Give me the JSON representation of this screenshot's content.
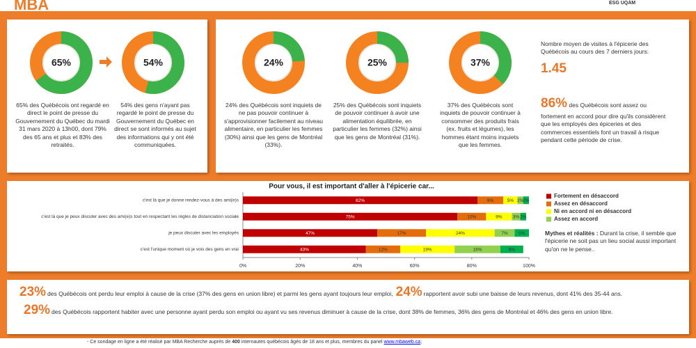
{
  "header": {
    "logo": "MBA",
    "partner": "ESG UQÀM"
  },
  "chart_data": [
    {
      "type": "donut",
      "value": 65,
      "label": "65%",
      "color": "#3cb34a",
      "rest_color": "#f58220",
      "caption": "65% des Québécois ont regardé en direct le point de presse du Gouvernement du Québec du mardi 31 mars 2020 à 13h00, dont 79% des 65 ans et plus et 83% des retraités."
    },
    {
      "type": "donut",
      "value": 54,
      "label": "54%",
      "color": "#3cb34a",
      "rest_color": "#f58220",
      "caption": "54% des gens n'ayant pas regardé le point de presse du Gouvernement du Québec en direct se sont informés au sujet des informations qui y ont été communiquées."
    },
    {
      "type": "donut",
      "value": 24,
      "label": "24%",
      "color": "#3cb34a",
      "rest_color": "#f58220",
      "caption": "24% des Québécois sont inquiets de ne pas pouvoir continuer à s'approvisionner facilement au niveau alimentaire, en particulier les femmes (30%) ainsi que les gens de Montréal (33%)."
    },
    {
      "type": "donut",
      "value": 25,
      "label": "25%",
      "color": "#3cb34a",
      "rest_color": "#f58220",
      "caption": "25% des Québécois sont inquiets de pouvoir continuer à avoir une alimentation équilibrée, en particulier les femmes (32%) ainsi que les gens de Montréal (31%)."
    },
    {
      "type": "donut",
      "value": 37,
      "label": "37%",
      "color": "#3cb34a",
      "rest_color": "#f58220",
      "caption": "37% des Québécois sont inquiets de pouvoir continuer à consommer des produits frais (ex. fruits et légumes), les hommes étant moins inquiets que les femmes."
    },
    {
      "type": "stacked_barh",
      "title": "Pour vous, il est important d'aller à l'épicerie car...",
      "categories": [
        "c'est là que je donne rendez-vous à des ami(e)s",
        "c'est là que je peux discuter avec des ami(e)s tout en respectant les règles de distanciation sociale",
        "je peux discuter avec les employés",
        "c'est l'unique moment où je vois des gens en vrai"
      ],
      "series": [
        {
          "name": "Fortement en désaccord",
          "color": "#c00000",
          "label_color": "#ffffff",
          "values": [
            82,
            75,
            47,
            43
          ],
          "value_labels": [
            "82%",
            "75%",
            "47%",
            "43%"
          ]
        },
        {
          "name": "Assez en désaccord",
          "color": "#e46c0a",
          "label_color": "#333333",
          "values": [
            9,
            10,
            17,
            12
          ],
          "value_labels": [
            "9%",
            "10%",
            "17%",
            "12%"
          ]
        },
        {
          "name": "Ni en accord ni en désaccord",
          "color": "#ffff00",
          "label_color": "#333333",
          "values": [
            5,
            9,
            24,
            19
          ],
          "value_labels": [
            "5%",
            "9%",
            "24%",
            "19%"
          ]
        },
        {
          "name": "Assez en accord",
          "color": "#92d050",
          "label_color": "#333333",
          "values": [
            2,
            3,
            7,
            16
          ],
          "value_labels": [
            "2%",
            "3%",
            "7%",
            "16%"
          ]
        },
        {
          "color": "#00b050",
          "label_color": "#333333",
          "values": [
            2,
            2,
            5,
            8
          ],
          "value_labels": [
            "2%",
            "2%",
            "5%",
            "8%"
          ]
        }
      ],
      "xlim": [
        0,
        100
      ],
      "xticks": [
        {
          "value": 0,
          "label": "0%"
        },
        {
          "value": 20,
          "label": "20%"
        },
        {
          "value": 40,
          "label": "40%"
        },
        {
          "value": 60,
          "label": "60%"
        },
        {
          "value": 80,
          "label": "80%"
        },
        {
          "value": 100,
          "label": "100%"
        }
      ]
    }
  ],
  "side": {
    "visits_label": "Nombre moyen de visites à l'épicerie des Québécois au cours des 7 derniers jours:",
    "visits_value": "1.45",
    "agree_value": "86%",
    "agree_text": "des Québécois sont assez ou fortement en accord pour dire qu'ils considèrent que les employés des épiceries et des commerces essentiels font un travail à risque pendant cette période de crise."
  },
  "myths": {
    "title": "Mythes et réalités :",
    "text": "Durant la crise, il semble que l'épicerie ne soit pas un lieu social aussi important qu'on ne le pense.."
  },
  "stats": [
    [
      {
        "big": "23%",
        "text": "des Québécois ont perdu leur emploi à cause de la crise (37% des gens en union libre) et parmi les gens ayant toujours leur emploi,"
      },
      {
        "big": "24%",
        "text": "rapportent avoir subi une baisse de leurs revenus, dont 41% des 35-44 ans."
      }
    ],
    [
      {
        "big": "29%",
        "text": "des Québécois rapportent habiter avec une personne ayant perdu son emploi ou ayant vu ses revenus diminuer à cause de la crise, dont 38% de femmes, 36% des gens de Montréal et 46% des gens en union libre."
      }
    ]
  ],
  "footnote": {
    "before": "Ce sondage en ligne a été réalisé par MBA Recherche auprès de",
    "count": "400",
    "after": "internautes québécois âgés de 18 ans et plus, membres du panel",
    "link": "www.mbaweb.ca",
    "end": ";"
  }
}
